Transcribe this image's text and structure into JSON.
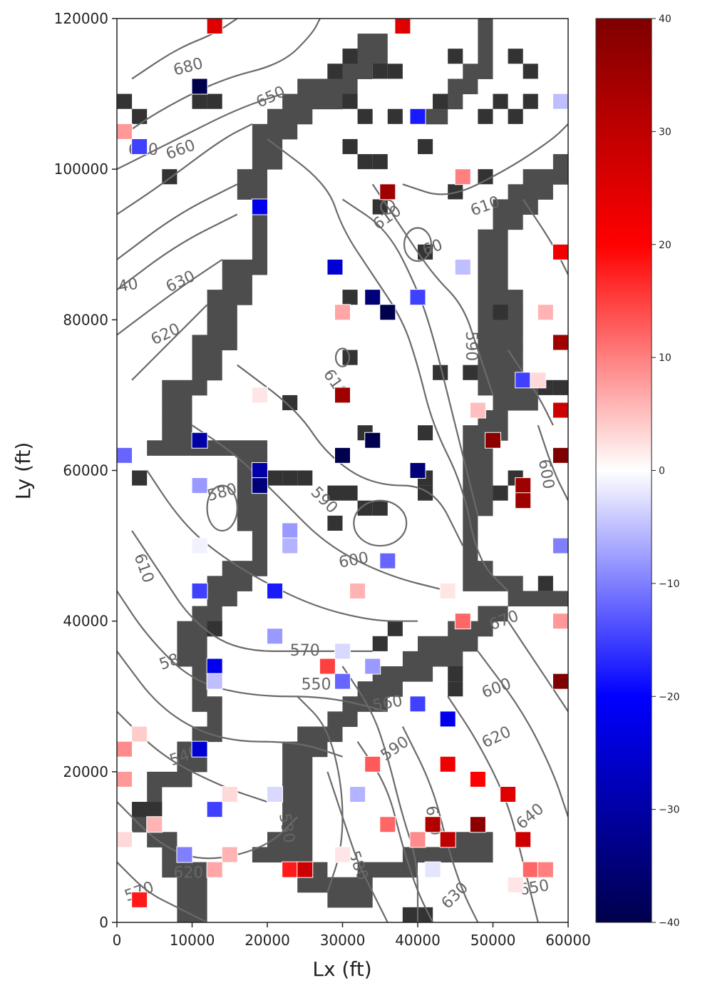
{
  "chart_data": {
    "type": "heatmap",
    "title": "",
    "xlabel": "Lx (ft)",
    "ylabel": "Ly (ft)",
    "xlim": [
      0,
      60000
    ],
    "ylim": [
      0,
      120000
    ],
    "grid": false,
    "x_ticks": [
      {
        "value": 0,
        "label": "0"
      },
      {
        "value": 10000,
        "label": "10000"
      },
      {
        "value": 20000,
        "label": "20000"
      },
      {
        "value": 30000,
        "label": "30000"
      },
      {
        "value": 40000,
        "label": "40000"
      },
      {
        "value": 50000,
        "label": "50000"
      },
      {
        "value": 60000,
        "label": "60000"
      }
    ],
    "y_ticks": [
      {
        "value": 0,
        "label": "0"
      },
      {
        "value": 20000,
        "label": "20000"
      },
      {
        "value": 40000,
        "label": "40000"
      },
      {
        "value": 60000,
        "label": "60000"
      },
      {
        "value": 80000,
        "label": "80000"
      },
      {
        "value": 100000,
        "label": "100000"
      },
      {
        "value": 120000,
        "label": "120000"
      }
    ],
    "colorbar": {
      "colormap": "seismic",
      "range": [
        -40,
        40
      ],
      "ticks": [
        {
          "value": 40,
          "label": "40"
        },
        {
          "value": 30,
          "label": "30"
        },
        {
          "value": 20,
          "label": "20"
        },
        {
          "value": 10,
          "label": "10"
        },
        {
          "value": 0,
          "label": "0"
        },
        {
          "value": -10,
          "label": "−10"
        },
        {
          "value": -20,
          "label": "−20"
        },
        {
          "value": -30,
          "label": "−30"
        },
        {
          "value": -40,
          "label": "−40"
        }
      ],
      "colors": {
        "low": "#00004c",
        "mid_low": "#0000ff",
        "zero": "#ffffff",
        "mid_high": "#ff0000",
        "high": "#7f0000"
      }
    },
    "inactive_cell_color": "#4d4d4d",
    "contour_color": "#6a6a6a",
    "contour_labels": [
      {
        "text": "680",
        "x": 9500,
        "y": 113500,
        "angle": -15
      },
      {
        "text": "650",
        "x": 20500,
        "y": 109500,
        "angle": -25
      },
      {
        "text": "670",
        "x": 3500,
        "y": 102500,
        "angle": 0
      },
      {
        "text": "660",
        "x": 8500,
        "y": 102500,
        "angle": -20
      },
      {
        "text": "40",
        "x": 1500,
        "y": 84500,
        "angle": -10
      },
      {
        "text": "630",
        "x": 8500,
        "y": 85000,
        "angle": -25
      },
      {
        "text": "620",
        "x": 6500,
        "y": 78000,
        "angle": -25
      },
      {
        "text": "610",
        "x": 49000,
        "y": 95000,
        "angle": -20
      },
      {
        "text": "610",
        "x": 36000,
        "y": 93500,
        "angle": -35
      },
      {
        "text": "60",
        "x": 42000,
        "y": 89500,
        "angle": -20
      },
      {
        "text": "610",
        "x": 29000,
        "y": 71500,
        "angle": 55
      },
      {
        "text": "590",
        "x": 47000,
        "y": 76500,
        "angle": 90
      },
      {
        "text": "600",
        "x": 57000,
        "y": 59500,
        "angle": 80
      },
      {
        "text": "580",
        "x": 14000,
        "y": 57000,
        "angle": -15
      },
      {
        "text": "590",
        "x": 27500,
        "y": 56000,
        "angle": 45
      },
      {
        "text": "600",
        "x": 31500,
        "y": 48000,
        "angle": -10
      },
      {
        "text": "610",
        "x": 3500,
        "y": 47000,
        "angle": 70
      },
      {
        "text": "570",
        "x": 25000,
        "y": 36000,
        "angle": 0
      },
      {
        "text": "670",
        "x": 51500,
        "y": 40000,
        "angle": -20
      },
      {
        "text": "550",
        "x": 26500,
        "y": 31500,
        "angle": 0
      },
      {
        "text": "560",
        "x": 36000,
        "y": 29000,
        "angle": -10
      },
      {
        "text": "600",
        "x": 50500,
        "y": 31000,
        "angle": -20
      },
      {
        "text": "620",
        "x": 50500,
        "y": 24500,
        "angle": -25
      },
      {
        "text": "590",
        "x": 37000,
        "y": 23000,
        "angle": -35
      },
      {
        "text": "640",
        "x": 55000,
        "y": 14000,
        "angle": -40
      },
      {
        "text": "610",
        "x": 42000,
        "y": 13500,
        "angle": 80
      },
      {
        "text": "580",
        "x": 32000,
        "y": 7500,
        "angle": 70
      },
      {
        "text": "620",
        "x": 9500,
        "y": 6500,
        "angle": 0
      },
      {
        "text": "630",
        "x": 45000,
        "y": 3500,
        "angle": -45
      },
      {
        "text": "650",
        "x": 55500,
        "y": 4500,
        "angle": -10
      },
      {
        "text": "540",
        "x": 9000,
        "y": 22000,
        "angle": -20
      },
      {
        "text": "58",
        "x": 7000,
        "y": 34500,
        "angle": -20
      },
      {
        "text": "530",
        "x": 22500,
        "y": 12500,
        "angle": 80
      },
      {
        "text": "570",
        "x": 3000,
        "y": 4000,
        "angle": -20
      }
    ],
    "residual_wells": [
      {
        "x": 13000,
        "y": 119000,
        "value": 25
      },
      {
        "x": 38000,
        "y": 119000,
        "value": 25
      },
      {
        "x": 11000,
        "y": 111000,
        "value": -40
      },
      {
        "x": 1000,
        "y": 105000,
        "value": 8
      },
      {
        "x": 3000,
        "y": 103000,
        "value": -15
      },
      {
        "x": 40000,
        "y": 107000,
        "value": -18
      },
      {
        "x": 59000,
        "y": 109000,
        "value": -5
      },
      {
        "x": 46000,
        "y": 99000,
        "value": 10
      },
      {
        "x": 36000,
        "y": 97000,
        "value": 35
      },
      {
        "x": 19000,
        "y": 95000,
        "value": -22
      },
      {
        "x": 59000,
        "y": 89000,
        "value": 22
      },
      {
        "x": 29000,
        "y": 87000,
        "value": -25
      },
      {
        "x": 46000,
        "y": 87000,
        "value": -5
      },
      {
        "x": 34000,
        "y": 83000,
        "value": -35
      },
      {
        "x": 40000,
        "y": 83000,
        "value": -15
      },
      {
        "x": 36000,
        "y": 81000,
        "value": -40
      },
      {
        "x": 30000,
        "y": 81000,
        "value": 7
      },
      {
        "x": 57000,
        "y": 81000,
        "value": 6
      },
      {
        "x": 59000,
        "y": 77000,
        "value": 35
      },
      {
        "x": 54000,
        "y": 72000,
        "value": -15
      },
      {
        "x": 56000,
        "y": 72000,
        "value": 3
      },
      {
        "x": 19000,
        "y": 70000,
        "value": 2
      },
      {
        "x": 30000,
        "y": 70000,
        "value": 35
      },
      {
        "x": 48000,
        "y": 68000,
        "value": 5
      },
      {
        "x": 59000,
        "y": 68000,
        "value": 28
      },
      {
        "x": 50000,
        "y": 64000,
        "value": 38
      },
      {
        "x": 11000,
        "y": 64000,
        "value": -30
      },
      {
        "x": 34000,
        "y": 64000,
        "value": -40
      },
      {
        "x": 1000,
        "y": 62000,
        "value": -12
      },
      {
        "x": 30000,
        "y": 62000,
        "value": -40
      },
      {
        "x": 59000,
        "y": 62000,
        "value": 40
      },
      {
        "x": 19000,
        "y": 60000,
        "value": -30
      },
      {
        "x": 40000,
        "y": 60000,
        "value": -35
      },
      {
        "x": 11000,
        "y": 58000,
        "value": -8
      },
      {
        "x": 19000,
        "y": 58000,
        "value": -35
      },
      {
        "x": 54000,
        "y": 58000,
        "value": 35
      },
      {
        "x": 54000,
        "y": 56000,
        "value": 35
      },
      {
        "x": 23000,
        "y": 52000,
        "value": -8
      },
      {
        "x": 23000,
        "y": 50000,
        "value": -6
      },
      {
        "x": 11000,
        "y": 50000,
        "value": -1
      },
      {
        "x": 59000,
        "y": 50000,
        "value": -10
      },
      {
        "x": 36000,
        "y": 48000,
        "value": -12
      },
      {
        "x": 11000,
        "y": 44000,
        "value": -15
      },
      {
        "x": 21000,
        "y": 44000,
        "value": -18
      },
      {
        "x": 32000,
        "y": 44000,
        "value": 6
      },
      {
        "x": 44000,
        "y": 44000,
        "value": 2
      },
      {
        "x": 46000,
        "y": 40000,
        "value": 12
      },
      {
        "x": 59000,
        "y": 40000,
        "value": 8
      },
      {
        "x": 21000,
        "y": 38000,
        "value": -8
      },
      {
        "x": 30000,
        "y": 36000,
        "value": -3
      },
      {
        "x": 13000,
        "y": 34000,
        "value": -22
      },
      {
        "x": 28000,
        "y": 34000,
        "value": 15
      },
      {
        "x": 34000,
        "y": 34000,
        "value": -8
      },
      {
        "x": 13000,
        "y": 32000,
        "value": -5
      },
      {
        "x": 30000,
        "y": 32000,
        "value": -12
      },
      {
        "x": 59000,
        "y": 32000,
        "value": 40
      },
      {
        "x": 40000,
        "y": 29000,
        "value": -15
      },
      {
        "x": 44000,
        "y": 27000,
        "value": -22
      },
      {
        "x": 3000,
        "y": 25000,
        "value": 4
      },
      {
        "x": 1000,
        "y": 23000,
        "value": 9
      },
      {
        "x": 11000,
        "y": 23000,
        "value": -25
      },
      {
        "x": 34000,
        "y": 21000,
        "value": 13
      },
      {
        "x": 44000,
        "y": 21000,
        "value": 22
      },
      {
        "x": 1000,
        "y": 19000,
        "value": 8
      },
      {
        "x": 48000,
        "y": 19000,
        "value": 20
      },
      {
        "x": 15000,
        "y": 17000,
        "value": 3
      },
      {
        "x": 21000,
        "y": 17000,
        "value": -3
      },
      {
        "x": 32000,
        "y": 17000,
        "value": -6
      },
      {
        "x": 52000,
        "y": 17000,
        "value": 25
      },
      {
        "x": 13000,
        "y": 15000,
        "value": -15
      },
      {
        "x": 5000,
        "y": 13000,
        "value": 6
      },
      {
        "x": 36000,
        "y": 13000,
        "value": 12
      },
      {
        "x": 42000,
        "y": 13000,
        "value": 32
      },
      {
        "x": 48000,
        "y": 13000,
        "value": 38
      },
      {
        "x": 1000,
        "y": 11000,
        "value": 3
      },
      {
        "x": 40000,
        "y": 11000,
        "value": 9
      },
      {
        "x": 44000,
        "y": 11000,
        "value": 30
      },
      {
        "x": 54000,
        "y": 11000,
        "value": 28
      },
      {
        "x": 9000,
        "y": 9000,
        "value": -10
      },
      {
        "x": 15000,
        "y": 9000,
        "value": 6
      },
      {
        "x": 30000,
        "y": 9000,
        "value": 2
      },
      {
        "x": 13000,
        "y": 7000,
        "value": 7
      },
      {
        "x": 23000,
        "y": 7000,
        "value": 18
      },
      {
        "x": 25000,
        "y": 7000,
        "value": 28
      },
      {
        "x": 42000,
        "y": 7000,
        "value": -2
      },
      {
        "x": 55000,
        "y": 7000,
        "value": 12
      },
      {
        "x": 57000,
        "y": 7000,
        "value": 10
      },
      {
        "x": 53000,
        "y": 5000,
        "value": 2
      },
      {
        "x": 3000,
        "y": 3000,
        "value": 18
      }
    ]
  }
}
